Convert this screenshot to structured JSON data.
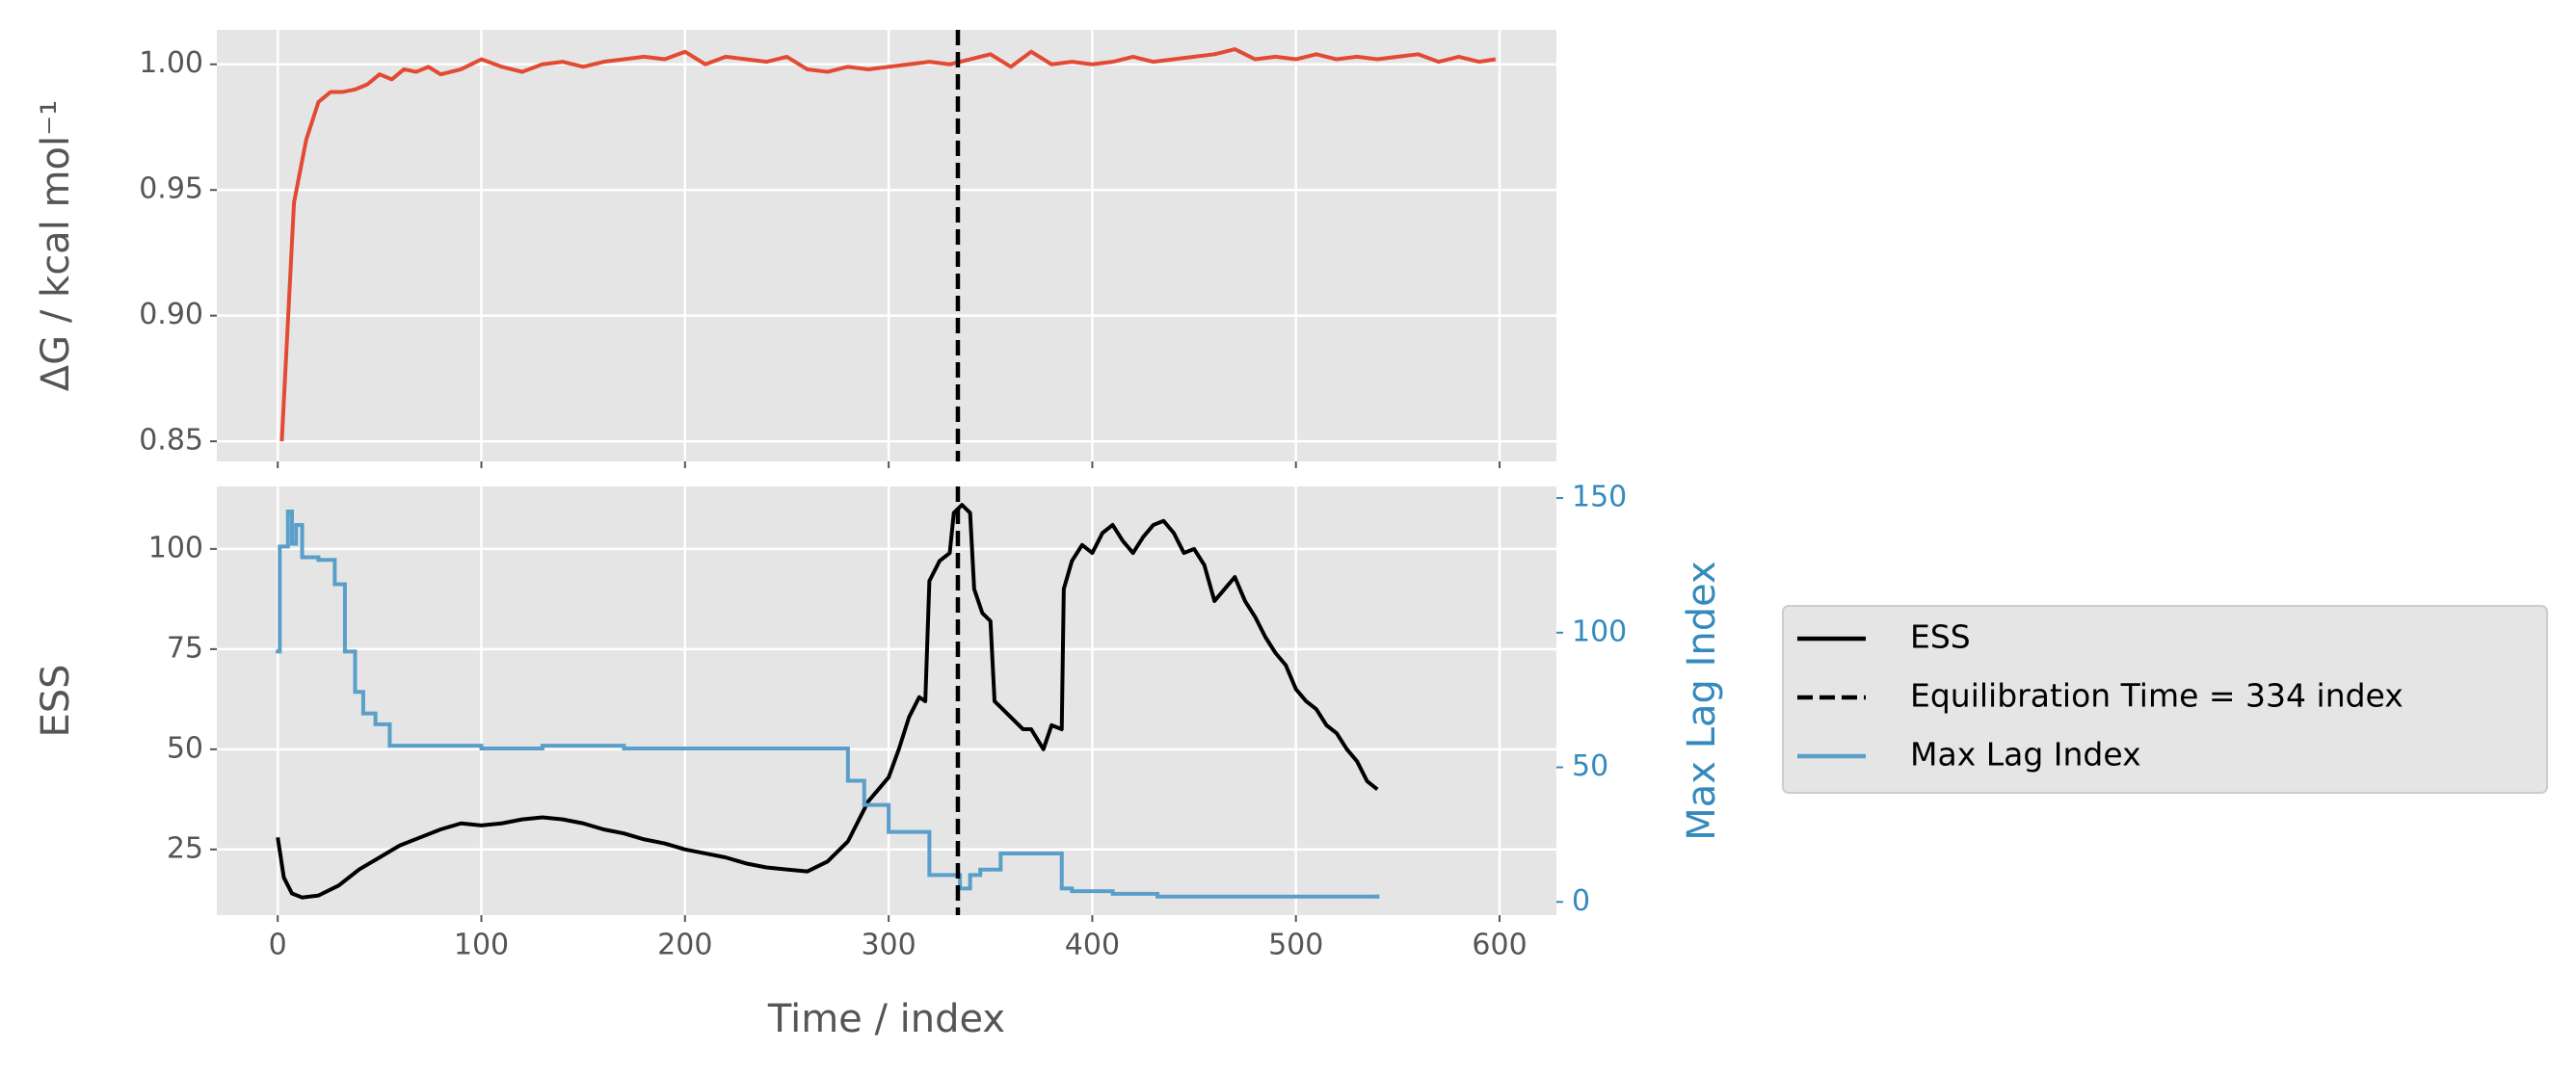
{
  "chart_data": [
    {
      "type": "line",
      "ylabel": "ΔG / kcal mol⁻¹",
      "color": "#e24a33",
      "x": [
        2,
        8,
        14,
        20,
        26,
        32,
        38,
        44,
        50,
        56,
        62,
        68,
        74,
        80,
        90,
        100,
        110,
        120,
        130,
        140,
        150,
        160,
        170,
        180,
        190,
        200,
        210,
        220,
        230,
        240,
        250,
        260,
        270,
        280,
        290,
        300,
        310,
        320,
        330,
        340,
        350,
        360,
        370,
        380,
        390,
        400,
        410,
        420,
        430,
        440,
        450,
        460,
        470,
        480,
        490,
        500,
        510,
        520,
        530,
        540,
        550,
        560,
        570,
        580,
        590,
        598
      ],
      "values": [
        0.85,
        0.945,
        0.97,
        0.985,
        0.989,
        0.989,
        0.99,
        0.992,
        0.996,
        0.994,
        0.998,
        0.997,
        0.999,
        0.996,
        0.998,
        1.002,
        0.999,
        0.997,
        1.0,
        1.001,
        0.999,
        1.001,
        1.002,
        1.003,
        1.002,
        1.005,
        1.0,
        1.003,
        1.002,
        1.001,
        1.003,
        0.998,
        0.997,
        0.999,
        0.998,
        0.999,
        1.0,
        1.001,
        1.0,
        1.002,
        1.004,
        0.999,
        1.005,
        1.0,
        1.001,
        1.0,
        1.001,
        1.003,
        1.001,
        1.002,
        1.003,
        1.004,
        1.006,
        1.002,
        1.003,
        1.002,
        1.004,
        1.002,
        1.003,
        1.002,
        1.003,
        1.004,
        1.001,
        1.003,
        1.001,
        1.002
      ],
      "xlim": [
        -29.9,
        627.9
      ],
      "xticks": [
        0,
        100,
        200,
        300,
        400,
        500,
        600
      ],
      "xticklabels": false,
      "ylim": [
        0.842,
        1.0137
      ],
      "yticks": [
        0.85,
        {
          "value": 0.9,
          "label": "0.90"
        },
        0.95,
        {
          "value": 1.0,
          "label": "1.00"
        }
      ],
      "grid": true,
      "vlines": [
        {
          "x": 334,
          "color": "#000000",
          "dashed": true
        }
      ]
    },
    {
      "type": "line",
      "xlabel": "Time / index",
      "ylabel": "ESS",
      "y2label": "Max Lag Index",
      "xlim": [
        -29.9,
        627.9
      ],
      "xticks": [
        0,
        100,
        200,
        300,
        400,
        500,
        600
      ],
      "ylim": [
        8.6,
        115.6
      ],
      "yticks": [
        25,
        50,
        75,
        100
      ],
      "y2lim": [
        -4.9,
        154.3
      ],
      "y2ticks": [
        0,
        50,
        100,
        150
      ],
      "y2color": "#348abd",
      "grid": true,
      "legend": "outside-right",
      "series": [
        {
          "name": "ESS",
          "color": "#000000",
          "x": [
            0,
            3,
            7,
            12,
            20,
            30,
            40,
            50,
            60,
            70,
            80,
            90,
            100,
            110,
            120,
            130,
            140,
            150,
            160,
            170,
            180,
            190,
            200,
            210,
            220,
            230,
            240,
            250,
            260,
            270,
            280,
            290,
            295,
            300,
            305,
            310,
            315,
            318,
            320,
            325,
            330,
            332,
            336,
            340,
            342,
            346,
            350,
            352,
            356,
            360,
            366,
            370,
            376,
            380,
            385,
            386,
            390,
            395,
            400,
            405,
            410,
            415,
            420,
            425,
            430,
            435,
            440,
            445,
            450,
            455,
            460,
            465,
            470,
            475,
            480,
            485,
            490,
            495,
            500,
            505,
            510,
            515,
            520,
            525,
            530,
            535,
            540
          ],
          "values": [
            28,
            18,
            14,
            13,
            13.5,
            16,
            20,
            23,
            26,
            28,
            30,
            31.5,
            31,
            31.5,
            32.5,
            33,
            32.5,
            31.5,
            30,
            29,
            27.5,
            26.5,
            25,
            24,
            23,
            21.5,
            20.5,
            20,
            19.5,
            22,
            27,
            37,
            40,
            43,
            50,
            58,
            63,
            62,
            92,
            97,
            99,
            109,
            111,
            109,
            90,
            84,
            82,
            62,
            60,
            58,
            55,
            55,
            50,
            56,
            55,
            90,
            97,
            101,
            99,
            104,
            106,
            102,
            99,
            103,
            106,
            107,
            104,
            99,
            100,
            96,
            87,
            90,
            93,
            87,
            83,
            78,
            74,
            71,
            65,
            62,
            60,
            56,
            54,
            50,
            47,
            42,
            40
          ]
        },
        {
          "name": "Max Lag Index",
          "color": "#5a9fc9",
          "axis": "y2",
          "steps": true,
          "x": [
            0,
            1,
            5,
            7,
            9,
            12,
            20,
            28,
            33,
            38,
            42,
            48,
            55,
            100,
            130,
            170,
            280,
            288,
            300,
            320,
            335,
            340,
            345,
            355,
            385,
            390,
            410,
            432,
            540
          ],
          "values": [
            93,
            132,
            145,
            133,
            140,
            128,
            127,
            118,
            93,
            78,
            70,
            66,
            58,
            57,
            58,
            57,
            45,
            36,
            26,
            10,
            5,
            10,
            12,
            18,
            5,
            4,
            3,
            2,
            2
          ]
        }
      ],
      "vlines": [
        {
          "x": 334,
          "name": "Equilibration Time = 334 index",
          "color": "#000000",
          "dashed": true
        }
      ]
    }
  ]
}
